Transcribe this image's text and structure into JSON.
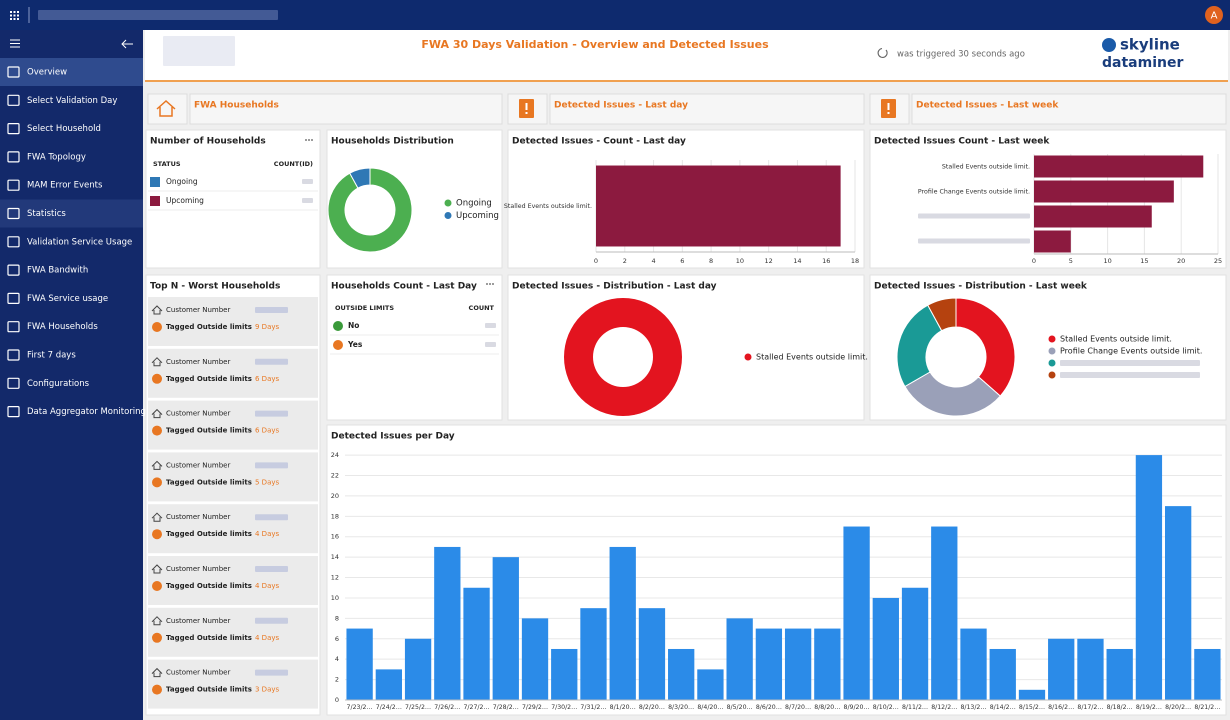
{
  "app": {
    "avatar": "A"
  },
  "sidebar": {
    "items": [
      "Overview",
      "Select Validation Day",
      "Select Household",
      "FWA Topology",
      "MAM Error Events",
      "Statistics",
      "Validation Service Usage",
      "FWA Bandwith",
      "FWA Service usage",
      "FWA Households",
      "First 7 days",
      "Configurations",
      "Data Aggregator Monitoring"
    ]
  },
  "header": {
    "title": "FWA 30 Days Validation - Overview and Detected Issues",
    "status": "was triggered 30 seconds ago",
    "logo": [
      "skyline",
      "dataminer"
    ]
  },
  "tabs": [
    "FWA Households",
    "Detected Issues - Last day",
    "Detected Issues - Last week"
  ],
  "households": {
    "title": "Number of Households",
    "columns": [
      "STATUS",
      "COUNT(ID)"
    ],
    "rows": [
      "Ongoing",
      "Upcoming"
    ]
  },
  "distribution": {
    "type": "pie",
    "title": "Households Distribution",
    "categories": [
      "Ongoing",
      "Upcoming"
    ],
    "values": [
      92,
      8
    ],
    "colors": [
      "#4caf50",
      "#2f78b5"
    ]
  },
  "issues_day": {
    "type": "bar",
    "horizontal": true,
    "title": "Detected Issues - Count - Last day",
    "categories": [
      "Stalled Events outside limit."
    ],
    "values": [
      17
    ],
    "color": "#8c1a3f",
    "xlim": [
      0,
      18
    ],
    "xticks": [
      0,
      2,
      4,
      6,
      8,
      10,
      12,
      14,
      16,
      18
    ],
    "grid": true
  },
  "issues_week": {
    "type": "bar",
    "horizontal": true,
    "title": "Detected Issues Count - Last week",
    "categories": [
      "Stalled Events outside limit.",
      "Profile Change Events outside limit.",
      null,
      null
    ],
    "values": [
      23,
      19,
      16,
      5
    ],
    "color": "#8c1a3f",
    "xlim": [
      0,
      25
    ],
    "xticks": [
      0,
      5,
      10,
      15,
      20,
      25
    ],
    "grid": true
  },
  "worst": {
    "title": "Top N - Worst Households",
    "items": [
      {
        "customer": "Customer Number",
        "tag": "Tagged Outside limits",
        "days": "9 Days"
      },
      {
        "customer": "Customer Number",
        "tag": "Tagged Outside limits",
        "days": "6 Days"
      },
      {
        "customer": "Customer Number",
        "tag": "Tagged Outside limits",
        "days": "6 Days"
      },
      {
        "customer": "Customer Number",
        "tag": "Tagged Outside limits",
        "days": "5 Days"
      },
      {
        "customer": "Customer Number",
        "tag": "Tagged Outside limits",
        "days": "4 Days"
      },
      {
        "customer": "Customer Number",
        "tag": "Tagged Outside limits",
        "days": "4 Days"
      },
      {
        "customer": "Customer Number",
        "tag": "Tagged Outside limits",
        "days": "4 Days"
      },
      {
        "customer": "Customer Number",
        "tag": "Tagged Outside limits",
        "days": "3 Days"
      }
    ]
  },
  "count_day": {
    "title": "Households Count - Last Day",
    "columns": [
      "OUTSIDE LIMITS",
      "COUNT"
    ],
    "rows": [
      "No",
      "Yes"
    ]
  },
  "dist_day": {
    "type": "pie",
    "title": "Detected Issues - Distribution - Last day",
    "categories": [
      "Stalled Events outside limit."
    ],
    "values": [
      17
    ],
    "colors": [
      "#e3141f"
    ]
  },
  "dist_week": {
    "type": "pie",
    "title": "Detected Issues - Distribution - Last week",
    "categories": [
      "Stalled Events outside limit.",
      "Profile Change Events outside limit.",
      null,
      null
    ],
    "values": [
      23,
      19,
      16,
      5
    ],
    "colors": [
      "#e3141f",
      "#9aa0b8",
      "#1a9a96",
      "#b5420f"
    ]
  },
  "per_day": {
    "type": "bar",
    "title": "Detected Issues per Day",
    "color": "#2b8be8",
    "grid": true,
    "categories": [
      "7/23/2…",
      "7/24/2…",
      "7/25/2…",
      "7/26/2…",
      "7/27/2…",
      "7/28/2…",
      "7/29/2…",
      "7/30/2…",
      "7/31/2…",
      "8/1/20…",
      "8/2/20…",
      "8/3/20…",
      "8/4/20…",
      "8/5/20…",
      "8/6/20…",
      "8/7/20…",
      "8/8/20…",
      "8/9/20…",
      "8/10/2…",
      "8/11/2…",
      "8/12/2…",
      "8/13/2…",
      "8/14/2…",
      "8/15/2…",
      "8/16/2…",
      "8/17/2…",
      "8/18/2…",
      "8/19/2…",
      "8/20/2…",
      "8/21/2…"
    ],
    "values": [
      7,
      3,
      6,
      15,
      11,
      14,
      8,
      5,
      9,
      15,
      9,
      5,
      3,
      8,
      7,
      7,
      7,
      17,
      10,
      11,
      17,
      7,
      5,
      1,
      6,
      6,
      5,
      24,
      19,
      5
    ],
    "ylim": [
      0,
      24.5
    ],
    "yticks": [
      0,
      2,
      4,
      6,
      8,
      10,
      12,
      14,
      16,
      18,
      20,
      22,
      24
    ]
  }
}
